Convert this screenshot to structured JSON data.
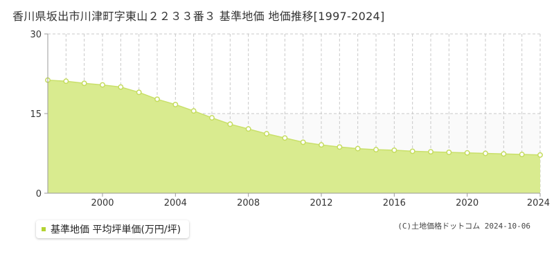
{
  "title": "香川県坂出市川津町字東山２２３３番３ 基準地価 地価推移[1997-2024]",
  "colors": {
    "area_fill": "#d9eb8f",
    "line": "#c9e06a",
    "point_fill": "#ffffff",
    "point_stroke": "#c5dc5e",
    "grid": "#c8c8c8",
    "axis": "#999999",
    "legend_swatch": "#b3d332",
    "upper_band": "#fafafa"
  },
  "legend": {
    "label": "基準地価 平均坪単価(万円/坪)"
  },
  "copyright": "(C)土地価格ドットコム 2024-10-06",
  "chart_data": {
    "type": "area",
    "title": "香川県坂出市川津町字東山２２３３番３ 基準地価 地価推移[1997-2024]",
    "xlabel": "",
    "ylabel": "",
    "xlim": [
      1997,
      2024
    ],
    "ylim": [
      0,
      30
    ],
    "x_ticks": [
      2000,
      2004,
      2008,
      2012,
      2016,
      2020,
      2024
    ],
    "y_ticks": [
      0,
      15,
      30
    ],
    "grid": true,
    "legend_position": "bottom-left",
    "x": [
      1997,
      1998,
      1999,
      2000,
      2001,
      2002,
      2003,
      2004,
      2005,
      2006,
      2007,
      2008,
      2009,
      2010,
      2011,
      2012,
      2013,
      2014,
      2015,
      2016,
      2017,
      2018,
      2019,
      2020,
      2021,
      2022,
      2023,
      2024
    ],
    "series": [
      {
        "name": "基準地価 平均坪単価(万円/坪)",
        "values": [
          21.3,
          21.1,
          20.7,
          20.4,
          20.0,
          19.0,
          17.7,
          16.7,
          15.5,
          14.2,
          13.0,
          12.1,
          11.2,
          10.4,
          9.6,
          9.1,
          8.7,
          8.4,
          8.2,
          8.1,
          7.9,
          7.8,
          7.7,
          7.6,
          7.5,
          7.4,
          7.3,
          7.2
        ]
      }
    ]
  }
}
